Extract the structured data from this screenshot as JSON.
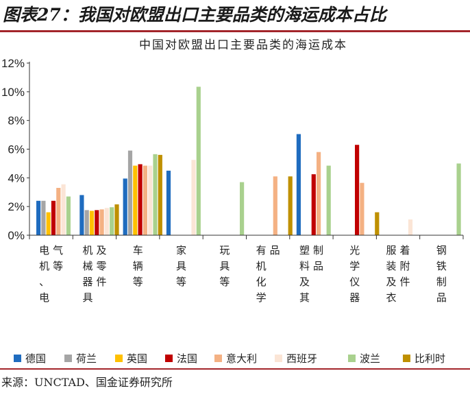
{
  "figure_title": "图表27：我国对欧盟出口主要品类的海运成本占比",
  "source_text": "来源：UNCTAD、国金证券研究所",
  "chart_data": {
    "type": "bar",
    "title": "中国对欧盟出口主要品类的海运成本",
    "xlabel": "",
    "ylabel": "",
    "ylim": [
      0,
      12
    ],
    "yticks": [
      0,
      2,
      4,
      6,
      8,
      10,
      12
    ],
    "ytick_labels": [
      "0%",
      "2%",
      "4%",
      "6%",
      "8%",
      "10%",
      "12%"
    ],
    "categories": [
      "电机、电气等",
      "机械器具及零件",
      "车辆等",
      "家具等",
      "玩具等",
      "有机化学品",
      "塑料及其制品",
      "光学仪器",
      "服装及衣着附件",
      "钢铁制品"
    ],
    "legend_position": "bottom",
    "series": [
      {
        "name": "德国",
        "color": "#1f6cbf",
        "values": [
          2.4,
          2.8,
          3.95,
          4.5,
          null,
          null,
          7.05,
          null,
          null,
          null
        ]
      },
      {
        "name": "荷兰",
        "color": "#a5a5a5",
        "values": [
          2.4,
          1.75,
          5.9,
          null,
          null,
          null,
          null,
          null,
          null,
          null
        ]
      },
      {
        "name": "英国",
        "color": "#ffc000",
        "values": [
          1.6,
          1.7,
          4.85,
          null,
          null,
          null,
          null,
          null,
          null,
          null
        ]
      },
      {
        "name": "法国",
        "color": "#c00000",
        "values": [
          2.4,
          1.75,
          4.95,
          null,
          null,
          null,
          4.25,
          6.3,
          null,
          null
        ]
      },
      {
        "name": "意大利",
        "color": "#f4b183",
        "values": [
          3.3,
          1.8,
          4.85,
          null,
          null,
          4.1,
          5.8,
          3.65,
          null,
          null
        ]
      },
      {
        "name": "西班牙",
        "color": "#fbe5d6",
        "values": [
          3.55,
          1.9,
          4.85,
          5.25,
          null,
          null,
          null,
          null,
          1.1,
          null
        ]
      },
      {
        "name": "波兰",
        "color": "#a9d18e",
        "values": [
          2.7,
          1.95,
          5.65,
          10.35,
          3.7,
          null,
          4.85,
          null,
          null,
          5.0
        ]
      },
      {
        "name": "比利时",
        "color": "#bf9000",
        "values": [
          null,
          2.15,
          5.6,
          null,
          null,
          4.1,
          null,
          1.6,
          null,
          null
        ]
      }
    ]
  }
}
